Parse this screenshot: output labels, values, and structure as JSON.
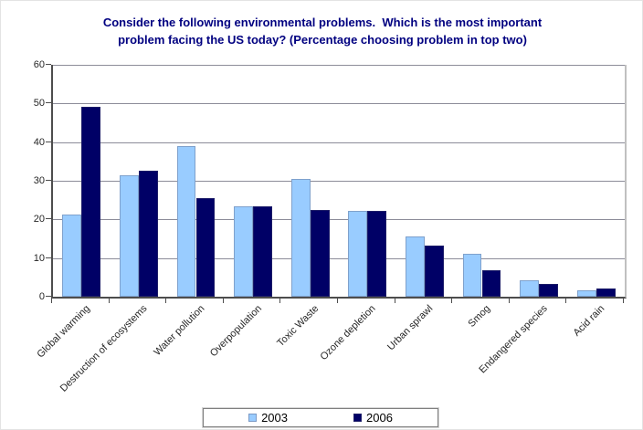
{
  "header": {
    "title_line1": "Consider the following environmental problems.  Which is the most important",
    "title_line2": "problem facing the US today? (Percentage choosing problem in top two)",
    "title_color": "#000080"
  },
  "chart_data": {
    "type": "bar",
    "title": "Consider the following environmental problems.  Which is the most important problem facing the US today? (Percentage choosing problem in top two)",
    "categories": [
      "Global warming",
      "Destruction of ecosystems",
      "Water pollution",
      "Overpopulation",
      "Toxic Waste",
      "Ozone depletion",
      "Urban sprawl",
      "Smog",
      "Endangered species",
      "Acid rain"
    ],
    "series": [
      {
        "name": "2003",
        "color": "#99CCFF",
        "values": [
          21.2,
          31.4,
          39.0,
          23.4,
          30.5,
          22.2,
          15.5,
          11.2,
          4.3,
          1.6
        ]
      },
      {
        "name": "2006",
        "color": "#000066",
        "values": [
          49.2,
          32.5,
          25.4,
          23.3,
          22.4,
          22.2,
          13.2,
          6.9,
          3.3,
          2.1
        ]
      }
    ],
    "xlabel": "",
    "ylabel": "",
    "ylim": [
      0,
      60
    ],
    "y_ticks": [
      0,
      10,
      20,
      30,
      40,
      50,
      60
    ],
    "grid": true,
    "legend_position": "bottom",
    "styles": {
      "gridline_color": "#8c8c99",
      "axis_color": "#4d4d4d",
      "tick_label_color": "#262626",
      "plot_background": "#ffffff"
    }
  }
}
